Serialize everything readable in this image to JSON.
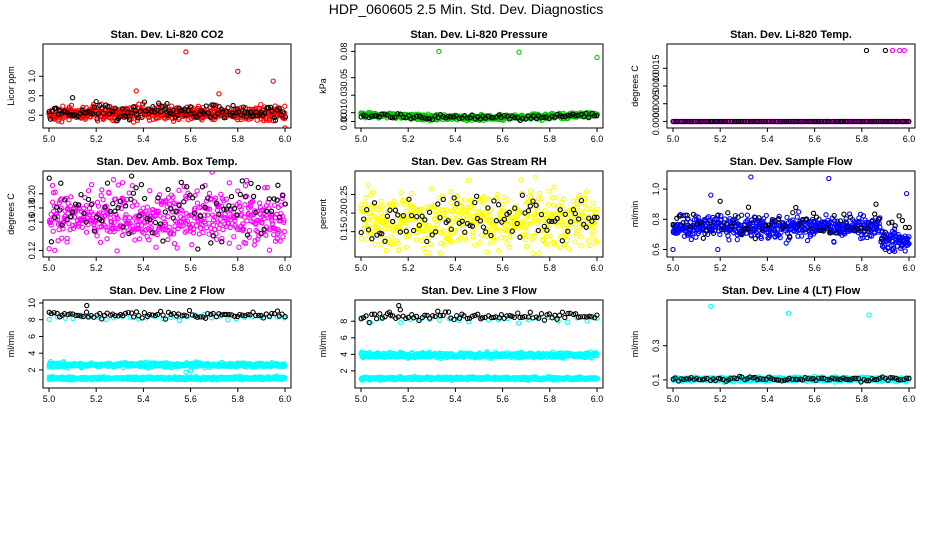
{
  "figure": {
    "title": "HDP_060605  2.5 Min. Std. Dev. Diagnostics"
  },
  "colors": {
    "red": "#ff0000",
    "green": "#00c800",
    "magenta": "#ff00ff",
    "yellow": "#ffff00",
    "blue": "#0000ff",
    "cyan": "#00ffff",
    "black": "#000000"
  },
  "chart_data": [
    {
      "type": "scatter",
      "title": "Stan. Dev. Li-820 CO2",
      "ylabel": "Licor ppm",
      "xlim": [
        5.0,
        6.0
      ],
      "ylim": [
        0.5,
        1.3
      ],
      "xticks": [
        "5.0",
        "5.2",
        "5.4",
        "5.6",
        "5.8",
        "6.0"
      ],
      "yticks": [
        {
          "v": 0.6,
          "label": "0.6"
        },
        {
          "v": 0.8,
          "label": "0.8"
        },
        {
          "v": 1.0,
          "label": "1.0"
        }
      ],
      "series": [
        {
          "name": "base",
          "color": "red",
          "n": 560,
          "mean": 0.62,
          "sd": 0.035,
          "outliers": [
            [
              5.58,
              1.25
            ],
            [
              5.8,
              1.05
            ],
            [
              5.95,
              0.95
            ],
            [
              5.37,
              0.85
            ],
            [
              5.72,
              0.82
            ],
            [
              6.0,
              0.47
            ]
          ]
        },
        {
          "name": "black",
          "color": "black",
          "n": 130,
          "mean": 0.63,
          "sd": 0.04,
          "outliers": [
            [
              5.1,
              0.78
            ],
            [
              5.2,
              0.74
            ],
            [
              5.5,
              0.72
            ],
            [
              5.78,
              0.7
            ]
          ]
        }
      ]
    },
    {
      "type": "scatter",
      "title": "Stan. Dev. Li-820 Pressure",
      "ylabel": "kPa",
      "xlim": [
        5.0,
        6.0
      ],
      "ylim": [
        -0.004,
        0.085
      ],
      "xticks": [
        "5.0",
        "5.2",
        "5.4",
        "5.6",
        "5.8",
        "6.0"
      ],
      "yticks": [
        {
          "v": 0.0,
          "label": "0.00"
        },
        {
          "v": 0.01,
          "label": "0.01"
        },
        {
          "v": 0.03,
          "label": "0.03"
        },
        {
          "v": 0.05,
          "label": "0.05"
        },
        {
          "v": 0.08,
          "label": "0.08"
        }
      ],
      "series": [
        {
          "name": "base",
          "color": "green",
          "n": 560,
          "mean": 0.008,
          "sd": 0.0015,
          "trend": "dip",
          "outliers": [
            [
              5.33,
              0.08
            ],
            [
              5.67,
              0.079
            ],
            [
              6.0,
              0.073
            ]
          ]
        },
        {
          "name": "black",
          "color": "black",
          "n": 90,
          "mean": 0.007,
          "sd": 0.0015,
          "trend": "dip",
          "outliers": []
        }
      ]
    },
    {
      "type": "scatter",
      "title": "Stan. Dev. Li-820 Temp.",
      "ylabel": "degrees C",
      "xlim": [
        5.0,
        6.0
      ],
      "ylim": [
        -0.0001,
        0.0021
      ],
      "xticks": [
        "5.0",
        "5.2",
        "5.4",
        "5.6",
        "5.8",
        "6.0"
      ],
      "yticks": [
        {
          "v": 0.0,
          "label": "0.0000"
        },
        {
          "v": 0.0005,
          "label": "0.0005"
        },
        {
          "v": 0.001,
          "label": "0.0010"
        },
        {
          "v": 0.0015,
          "label": "0.0015"
        }
      ],
      "series": [
        {
          "name": "base",
          "color": "magenta",
          "n": 420,
          "mean": 0.0,
          "sd": 0.0,
          "outliers": [
            [
              5.93,
              0.002
            ],
            [
              5.96,
              0.002
            ],
            [
              5.98,
              0.002
            ]
          ]
        },
        {
          "name": "black",
          "color": "black",
          "n": 90,
          "mean": 0.0,
          "sd": 0.0,
          "outliers": [
            [
              5.82,
              0.002
            ],
            [
              5.9,
              0.002
            ]
          ]
        }
      ]
    },
    {
      "type": "scatter",
      "title": "Stan. Dev. Amb. Box Temp.",
      "ylabel": "degrees C",
      "xlim": [
        5.0,
        6.0
      ],
      "ylim": [
        0.115,
        0.228
      ],
      "xticks": [
        "5.0",
        "5.2",
        "5.4",
        "5.6",
        "5.8",
        "6.0"
      ],
      "yticks": [
        {
          "v": 0.12,
          "label": "0.12"
        },
        {
          "v": 0.16,
          "label": "0.16"
        },
        {
          "v": 0.18,
          "label": "0.18"
        },
        {
          "v": 0.2,
          "label": "0.20"
        }
      ],
      "series": [
        {
          "name": "base",
          "color": "magenta",
          "n": 520,
          "mean": 0.168,
          "sd": 0.019,
          "outliers": []
        },
        {
          "name": "black",
          "color": "black",
          "n": 90,
          "mean": 0.172,
          "sd": 0.022,
          "outliers": [
            [
              5.35,
              0.225
            ],
            [
              5.05,
              0.215
            ],
            [
              5.97,
              0.212
            ]
          ]
        }
      ]
    },
    {
      "type": "scatter",
      "title": "Stan. Dev. Gas Stream RH",
      "ylabel": "percent",
      "xlim": [
        5.0,
        6.0
      ],
      "ylim": [
        0.09,
        0.305
      ],
      "xticks": [
        "5.0",
        "5.2",
        "5.4",
        "5.6",
        "5.8",
        "6.0"
      ],
      "yticks": [
        {
          "v": 0.15,
          "label": "0.15"
        },
        {
          "v": 0.2,
          "label": "0.20"
        },
        {
          "v": 0.25,
          "label": "0.25"
        }
      ],
      "series": [
        {
          "name": "base",
          "color": "yellow",
          "n": 520,
          "mean": 0.18,
          "sd": 0.035,
          "outliers": [
            [
              5.74,
              0.295
            ],
            [
              5.16,
              0.1
            ]
          ]
        },
        {
          "name": "black",
          "color": "black",
          "n": 90,
          "mean": 0.18,
          "sd": 0.03,
          "outliers": [
            [
              5.49,
              0.245
            ]
          ]
        }
      ]
    },
    {
      "type": "scatter",
      "title": "Stan. Dev. Sample Flow",
      "ylabel": "ml/min",
      "xlim": [
        5.0,
        6.0
      ],
      "ylim": [
        0.57,
        1.1
      ],
      "xticks": [
        "5.0",
        "5.2",
        "5.4",
        "5.6",
        "5.8",
        "6.0"
      ],
      "yticks": [
        {
          "v": 0.6,
          "label": "0.6"
        },
        {
          "v": 0.8,
          "label": "0.8"
        },
        {
          "v": 1.0,
          "label": "1.0"
        }
      ],
      "series": [
        {
          "name": "base",
          "color": "blue",
          "n": 600,
          "mean": 0.75,
          "sd": 0.035,
          "trend": "drop",
          "outliers": [
            [
              5.33,
              1.08
            ],
            [
              5.66,
              1.07
            ],
            [
              5.16,
              0.96
            ],
            [
              5.99,
              0.97
            ],
            [
              5.0,
              0.6
            ],
            [
              5.19,
              0.6
            ]
          ]
        },
        {
          "name": "black",
          "color": "black",
          "n": 70,
          "mean": 0.77,
          "sd": 0.04,
          "outliers": [
            [
              5.2,
              0.92
            ],
            [
              5.32,
              0.88
            ],
            [
              5.86,
              0.9
            ]
          ]
        }
      ]
    },
    {
      "type": "scatter",
      "title": "Stan. Dev. Line 2 Flow",
      "ylabel": "ml/min",
      "xlim": [
        5.0,
        6.0
      ],
      "ylim": [
        0.2,
        10.0
      ],
      "xticks": [
        "5.0",
        "5.2",
        "5.4",
        "5.6",
        "5.8",
        "6.0"
      ],
      "yticks": [
        {
          "v": 2,
          "label": "2"
        },
        {
          "v": 4,
          "label": "4"
        },
        {
          "v": 6,
          "label": "6"
        },
        {
          "v": 8,
          "label": "8"
        },
        {
          "v": 10,
          "label": "10"
        }
      ],
      "series": [
        {
          "name": "upper",
          "color": "cyan",
          "n": 560,
          "mean": 2.6,
          "sd": 0.12,
          "outliers": [
            [
              5.58,
              1.7
            ],
            [
              5.6,
              1.9
            ]
          ]
        },
        {
          "name": "lower",
          "color": "cyan",
          "n": 560,
          "mean": 1.0,
          "sd": 0.08,
          "outliers": []
        },
        {
          "name": "top-cyan",
          "color": "cyan",
          "n": 30,
          "mean": 8.3,
          "sd": 0.15,
          "outliers": []
        },
        {
          "name": "black",
          "color": "black",
          "n": 90,
          "mean": 8.6,
          "sd": 0.2,
          "outliers": [
            [
              5.16,
              9.7
            ]
          ]
        }
      ]
    },
    {
      "type": "scatter",
      "title": "Stan. Dev. Line 3 Flow",
      "ylabel": "ml/min",
      "xlim": [
        5.0,
        6.0
      ],
      "ylim": [
        0.3,
        10.2
      ],
      "xticks": [
        "5.0",
        "5.2",
        "5.4",
        "5.6",
        "5.8",
        "6.0"
      ],
      "yticks": [
        {
          "v": 2,
          "label": "2"
        },
        {
          "v": 4,
          "label": "4"
        },
        {
          "v": 6,
          "label": "6"
        },
        {
          "v": 8,
          "label": "8"
        }
      ],
      "series": [
        {
          "name": "upper",
          "color": "cyan",
          "n": 560,
          "mean": 3.9,
          "sd": 0.15,
          "outliers": []
        },
        {
          "name": "lower",
          "color": "cyan",
          "n": 560,
          "mean": 1.1,
          "sd": 0.08,
          "outliers": []
        },
        {
          "name": "top-cyan",
          "color": "cyan",
          "n": 25,
          "mean": 8.2,
          "sd": 0.2,
          "outliers": []
        },
        {
          "name": "black",
          "color": "black",
          "n": 90,
          "mean": 8.6,
          "sd": 0.25,
          "outliers": [
            [
              5.16,
              9.9
            ],
            [
              5.12,
              9.1
            ]
          ]
        }
      ]
    },
    {
      "type": "scatter",
      "title": "Stan. Dev. Line 4 (LT) Flow",
      "ylabel": "ml/min",
      "xlim": [
        5.0,
        6.0
      ],
      "ylim": [
        0.07,
        0.55
      ],
      "xticks": [
        "5.0",
        "5.2",
        "5.4",
        "5.6",
        "5.8",
        "6.0"
      ],
      "yticks": [
        {
          "v": 0.1,
          "label": "0.1"
        },
        {
          "v": 0.3,
          "label": "0.3"
        }
      ],
      "series": [
        {
          "name": "base",
          "color": "cyan",
          "n": 560,
          "mean": 0.104,
          "sd": 0.006,
          "outliers": [
            [
              5.16,
              0.53
            ],
            [
              5.49,
              0.49
            ],
            [
              5.83,
              0.48
            ]
          ]
        },
        {
          "name": "black",
          "color": "black",
          "n": 90,
          "mean": 0.105,
          "sd": 0.006,
          "outliers": []
        }
      ]
    }
  ]
}
